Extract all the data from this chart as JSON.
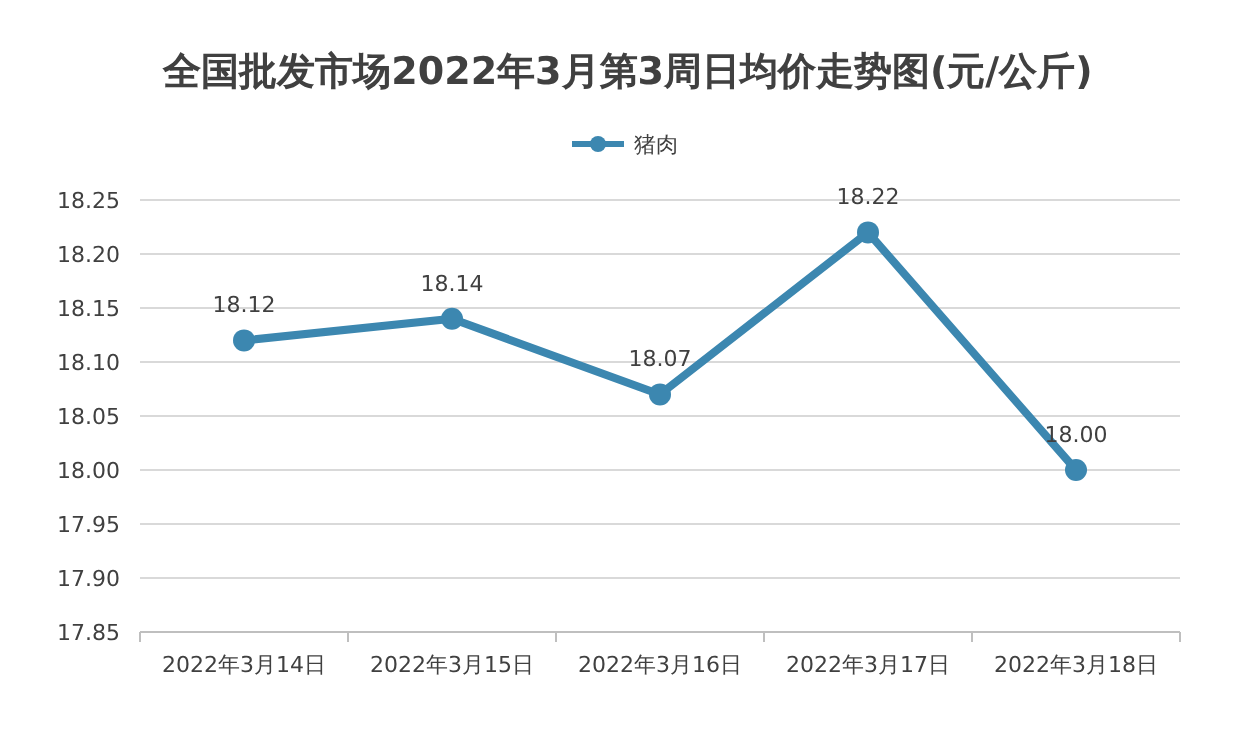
{
  "chart_data": {
    "type": "line",
    "title": "全国批发市场2022年3月第3周日均价走势图(元/公斤)",
    "categories": [
      "2022年3月14日",
      "2022年3月15日",
      "2022年3月16日",
      "2022年3月17日",
      "2022年3月18日"
    ],
    "series": [
      {
        "name": "猪肉",
        "color": "#3c87b0",
        "values": [
          18.12,
          18.14,
          18.07,
          18.22,
          18.0
        ],
        "value_labels": [
          "18.12",
          "18.14",
          "18.07",
          "18.22",
          "18.00"
        ]
      }
    ],
    "ylim": [
      17.85,
      18.25
    ],
    "yticks": [
      17.85,
      {
        "value": 17.9,
        "label": "17.90"
      },
      17.95,
      {
        "value": 18.0,
        "label": "18.00"
      },
      18.05,
      {
        "value": 18.1,
        "label": "18.10"
      },
      18.15,
      {
        "value": 18.2,
        "label": "18.20"
      },
      18.25
    ],
    "grid": "y",
    "legend": "top",
    "marker": "circle",
    "line_style": "solid"
  }
}
